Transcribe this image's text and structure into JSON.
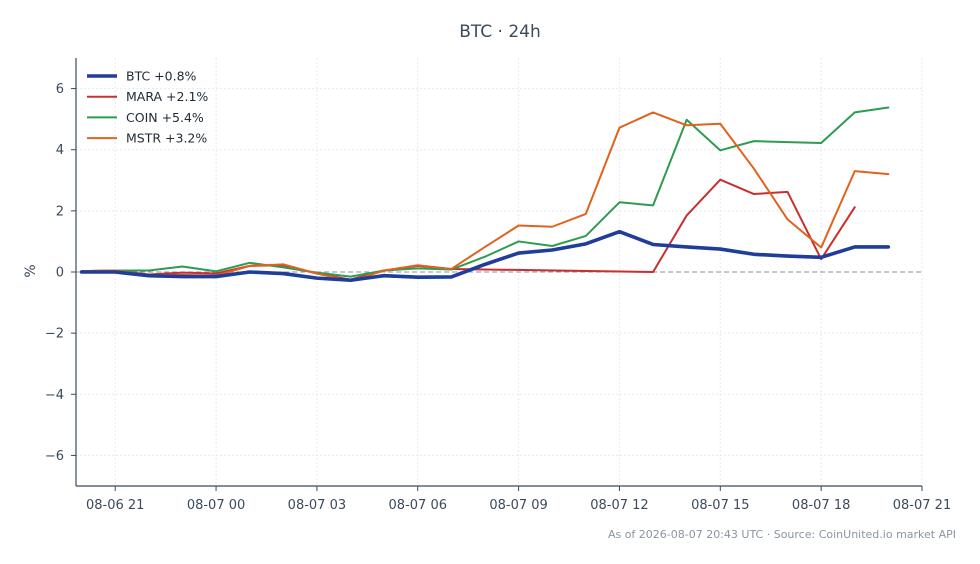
{
  "chart_data": {
    "type": "line",
    "title": "BTC · 24h",
    "ylabel": "%",
    "xlabel": "",
    "ylim": [
      -7,
      7
    ],
    "yticks": [
      -6,
      -4,
      -2,
      0,
      2,
      4,
      6
    ],
    "ytick_labels": [
      "−6",
      "−4",
      "−2",
      "0",
      "2",
      "4",
      "6"
    ],
    "xlim": [
      "2026-08-06 19:50",
      "2026-08-07 21:00"
    ],
    "xticks": [
      "2026-08-06 21:00",
      "2026-08-07 00:00",
      "2026-08-07 03:00",
      "2026-08-07 06:00",
      "2026-08-07 09:00",
      "2026-08-07 12:00",
      "2026-08-07 15:00",
      "2026-08-07 18:00",
      "2026-08-07 21:00"
    ],
    "xtick_labels": [
      "08-06 21",
      "08-07 00",
      "08-07 03",
      "08-07 06",
      "08-07 09",
      "08-07 12",
      "08-07 15",
      "08-07 18",
      "08-07 21"
    ],
    "grid": true,
    "zero_line": true,
    "legend_position": "top-left",
    "series": [
      {
        "name": "BTC +0.8%",
        "color": "#1f3d99",
        "width": 3.6,
        "x": [
          "2026-08-06 20:00",
          "2026-08-06 21:00",
          "2026-08-06 22:00",
          "2026-08-06 23:00",
          "2026-08-07 00:00",
          "2026-08-07 01:00",
          "2026-08-07 02:00",
          "2026-08-07 03:00",
          "2026-08-07 04:00",
          "2026-08-07 05:00",
          "2026-08-07 06:00",
          "2026-08-07 07:00",
          "2026-08-07 08:00",
          "2026-08-07 09:00",
          "2026-08-07 10:00",
          "2026-08-07 11:00",
          "2026-08-07 12:00",
          "2026-08-07 13:00",
          "2026-08-07 14:00",
          "2026-08-07 15:00",
          "2026-08-07 16:00",
          "2026-08-07 17:00",
          "2026-08-07 18:00",
          "2026-08-07 19:00",
          "2026-08-07 20:00"
        ],
        "y": [
          0.0,
          0.0,
          -0.12,
          -0.15,
          -0.15,
          0.0,
          -0.05,
          -0.2,
          -0.27,
          -0.12,
          -0.17,
          -0.16,
          0.25,
          0.62,
          0.72,
          0.92,
          1.32,
          0.9,
          0.82,
          0.75,
          0.58,
          0.52,
          0.48,
          0.82,
          0.82
        ]
      },
      {
        "name": "MARA +2.1%",
        "color": "#c92f2f",
        "width": 2,
        "x": [
          "2026-08-06 20:00",
          "2026-08-06 21:00",
          "2026-08-06 22:00",
          "2026-08-06 23:00",
          "2026-08-07 00:00",
          "2026-08-07 01:00",
          "2026-08-07 02:00",
          "2026-08-07 03:00",
          "2026-08-07 04:00",
          "2026-08-07 05:00",
          "2026-08-07 06:00",
          "2026-08-07 07:00",
          "2026-08-07 13:00",
          "2026-08-07 14:00",
          "2026-08-07 15:00",
          "2026-08-07 16:00",
          "2026-08-07 17:00",
          "2026-08-07 18:00",
          "2026-08-07 19:00"
        ],
        "y": [
          0.03,
          0.05,
          -0.08,
          -0.02,
          -0.05,
          0.2,
          0.22,
          -0.05,
          -0.25,
          0.05,
          0.2,
          0.1,
          0.0,
          1.85,
          3.02,
          2.55,
          2.62,
          0.42,
          2.12
        ]
      },
      {
        "name": "COIN +5.4%",
        "color": "#2e9c4f",
        "width": 2,
        "x": [
          "2026-08-06 20:00",
          "2026-08-06 21:00",
          "2026-08-06 22:00",
          "2026-08-06 23:00",
          "2026-08-07 00:00",
          "2026-08-07 01:00",
          "2026-08-07 02:00",
          "2026-08-07 03:00",
          "2026-08-07 04:00",
          "2026-08-07 05:00",
          "2026-08-07 06:00",
          "2026-08-07 07:00",
          "2026-08-07 08:00",
          "2026-08-07 09:00",
          "2026-08-07 10:00",
          "2026-08-07 11:00",
          "2026-08-07 12:00",
          "2026-08-07 13:00",
          "2026-08-07 14:00",
          "2026-08-07 15:00",
          "2026-08-07 16:00",
          "2026-08-07 17:00",
          "2026-08-07 18:00",
          "2026-08-07 19:00",
          "2026-08-07 20:00"
        ],
        "y": [
          0.03,
          0.05,
          0.05,
          0.18,
          0.02,
          0.3,
          0.15,
          -0.02,
          -0.15,
          0.05,
          0.12,
          0.08,
          0.5,
          1.0,
          0.85,
          1.18,
          2.28,
          2.18,
          4.98,
          3.98,
          4.28,
          4.25,
          4.22,
          5.22,
          5.38
        ]
      },
      {
        "name": "MSTR +3.2%",
        "color": "#e0621e",
        "width": 2,
        "x": [
          "2026-08-06 20:00",
          "2026-08-06 21:00",
          "2026-08-06 22:00",
          "2026-08-06 23:00",
          "2026-08-07 00:00",
          "2026-08-07 01:00",
          "2026-08-07 02:00",
          "2026-08-07 03:00",
          "2026-08-07 04:00",
          "2026-08-07 05:00",
          "2026-08-07 06:00",
          "2026-08-07 07:00",
          "2026-08-07 08:00",
          "2026-08-07 09:00",
          "2026-08-07 10:00",
          "2026-08-07 11:00",
          "2026-08-07 12:00",
          "2026-08-07 13:00",
          "2026-08-07 14:00",
          "2026-08-07 15:00",
          "2026-08-07 16:00",
          "2026-08-07 17:00",
          "2026-08-07 18:00",
          "2026-08-07 19:00",
          "2026-08-07 20:00"
        ],
        "y": [
          0.03,
          0.05,
          -0.1,
          -0.1,
          -0.12,
          0.2,
          0.25,
          -0.05,
          -0.3,
          0.05,
          0.22,
          0.1,
          0.82,
          1.52,
          1.48,
          1.9,
          4.72,
          5.22,
          4.8,
          4.85,
          3.38,
          1.72,
          0.8,
          3.3,
          3.2
        ]
      }
    ],
    "footer": "As of 2026-08-07 20:43 UTC · Source: CoinUnited.io market API"
  }
}
